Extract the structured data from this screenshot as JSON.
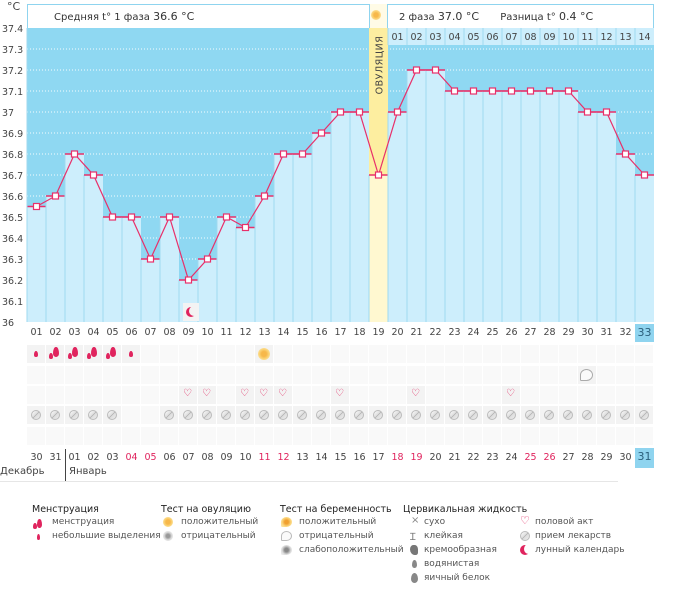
{
  "header": {
    "unit": "°C",
    "phase1_label": "Средняя t° 1 фаза",
    "phase1_value": "36.6 °C",
    "phase2_label": "2 фаза",
    "phase2_value": "37.0 °C",
    "diff_label": "Разница t°",
    "diff_value": "0.4 °C"
  },
  "ovulation_label": "ОВУЛЯЦИЯ",
  "chart_data": {
    "type": "line",
    "title": "",
    "xlabel": "",
    "ylabel": "°C",
    "ylim": [
      36.0,
      37.4
    ],
    "yticks": [
      "37.4",
      "37.3",
      "37.2",
      "37.1",
      "37",
      "36.9",
      "36.8",
      "36.7",
      "36.6",
      "36.5",
      "36.4",
      "36.3",
      "36.2",
      "36.1",
      "36"
    ],
    "x": [
      "01",
      "02",
      "03",
      "04",
      "05",
      "06",
      "07",
      "08",
      "09",
      "10",
      "11",
      "12",
      "13",
      "14",
      "15",
      "16",
      "17",
      "18",
      "19",
      "20",
      "21",
      "22",
      "23",
      "24",
      "25",
      "26",
      "27",
      "28",
      "29",
      "30",
      "31",
      "32",
      "33"
    ],
    "series": [
      {
        "name": "Базальная температура",
        "values": [
          36.55,
          36.6,
          36.8,
          36.7,
          36.5,
          36.5,
          36.3,
          36.5,
          36.2,
          36.3,
          36.5,
          36.45,
          36.6,
          36.8,
          36.8,
          36.9,
          37.0,
          37.0,
          36.7,
          37.0,
          37.2,
          37.2,
          37.1,
          37.1,
          37.1,
          37.1,
          37.1,
          37.1,
          37.1,
          37.0,
          37.0,
          36.8,
          36.7
        ]
      }
    ],
    "ovulation_day": 19,
    "phase2_day_labels": [
      "01",
      "02",
      "03",
      "04",
      "05",
      "06",
      "07",
      "08",
      "09",
      "10",
      "11",
      "12",
      "13",
      "14"
    ],
    "current_day": "33",
    "colors": {
      "line": "#e8306a",
      "bar": "#cdeefc",
      "background": "#8fd8f2",
      "ovulation": "#fdeea0",
      "phase2_header": "#cdeefc"
    }
  },
  "rows": {
    "menstruation": {
      "1": "small",
      "2": "large",
      "3": "large",
      "4": "large",
      "5": "large",
      "6": "small"
    },
    "ovulation_test": {
      "13": "positive"
    },
    "pregnancy_test": {
      "30": "negative"
    },
    "intercourse": [
      9,
      10,
      12,
      13,
      14,
      17,
      21,
      26
    ],
    "medication": [
      1,
      2,
      3,
      4,
      5,
      8,
      9,
      10,
      11,
      12,
      13,
      14,
      15,
      16,
      17,
      18,
      19,
      20,
      21,
      22,
      23,
      24,
      25,
      26,
      27,
      28,
      29,
      30,
      31,
      32,
      33
    ],
    "moon_day": 9
  },
  "dates": [
    {
      "d": "30",
      "red": false
    },
    {
      "d": "31",
      "red": false
    },
    {
      "d": "01",
      "red": false
    },
    {
      "d": "02",
      "red": false
    },
    {
      "d": "03",
      "red": false
    },
    {
      "d": "04",
      "red": true
    },
    {
      "d": "05",
      "red": true
    },
    {
      "d": "06",
      "red": false
    },
    {
      "d": "07",
      "red": false
    },
    {
      "d": "08",
      "red": false
    },
    {
      "d": "09",
      "red": false
    },
    {
      "d": "10",
      "red": false
    },
    {
      "d": "11",
      "red": true
    },
    {
      "d": "12",
      "red": true
    },
    {
      "d": "13",
      "red": false
    },
    {
      "d": "14",
      "red": false
    },
    {
      "d": "15",
      "red": false
    },
    {
      "d": "16",
      "red": false
    },
    {
      "d": "17",
      "red": false
    },
    {
      "d": "18",
      "red": true
    },
    {
      "d": "19",
      "red": true
    },
    {
      "d": "20",
      "red": false
    },
    {
      "d": "21",
      "red": false
    },
    {
      "d": "22",
      "red": false
    },
    {
      "d": "23",
      "red": false
    },
    {
      "d": "24",
      "red": false
    },
    {
      "d": "25",
      "red": true
    },
    {
      "d": "26",
      "red": true
    },
    {
      "d": "27",
      "red": false
    },
    {
      "d": "28",
      "red": false
    },
    {
      "d": "29",
      "red": false
    },
    {
      "d": "30",
      "red": false
    },
    {
      "d": "31",
      "red": false
    }
  ],
  "months": {
    "prev": "Декабрь",
    "current": "Январь"
  },
  "legend": {
    "menstruation": {
      "title": "Менструация",
      "items": [
        "менструация",
        "небольшие выделения"
      ]
    },
    "ovulation_test": {
      "title": "Тест на овуляцию",
      "items": [
        "положительный",
        "отрицательный"
      ]
    },
    "pregnancy_test": {
      "title": "Тест на беременность",
      "items": [
        "положительный",
        "отрицательный",
        "слабоположительный"
      ]
    },
    "cervical": {
      "title": "Цервикальная жидкость",
      "items": [
        "сухо",
        "клейкая",
        "кремообразная",
        "водянистая",
        "яичный белок"
      ]
    },
    "other": {
      "items": [
        "половой акт",
        "прием лекарств",
        "лунный календарь"
      ]
    }
  }
}
